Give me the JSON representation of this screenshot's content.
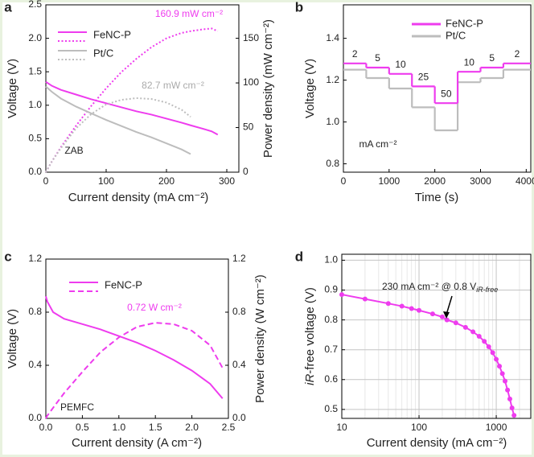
{
  "chart_data": [
    {
      "panel": "a",
      "type": "line",
      "xlabel": "Current density (mA cm⁻²)",
      "ylabel": "Voltage (V)",
      "y2label": "Power density (mW cm⁻²)",
      "x": [
        0,
        10,
        25,
        50,
        75,
        100,
        125,
        150,
        175,
        200,
        225,
        240,
        260,
        275,
        285
      ],
      "xlim": [
        0,
        320
      ],
      "xticks": [
        0,
        100,
        200,
        300
      ],
      "ylim": [
        0,
        2.5
      ],
      "yticks": [
        {
          "value": 0,
          "label": "0.0"
        },
        0.5,
        {
          "value": 1,
          "label": "1.0"
        },
        1.5,
        {
          "value": 2,
          "label": "2.0"
        },
        2.5
      ],
      "y2lim": [
        0,
        187.5
      ],
      "y2ticks": [
        0,
        50,
        100,
        150
      ],
      "power_style": "dotted",
      "series": [
        {
          "name": "FeNC-P",
          "color": "#ee3cee",
          "values": [
            1.35,
            1.29,
            1.23,
            1.16,
            1.09,
            1.03,
            0.97,
            0.91,
            0.86,
            0.8,
            0.74,
            0.7,
            0.65,
            0.61,
            0.56
          ],
          "power_values": [
            0,
            12,
            28,
            52,
            74,
            94,
            112,
            127,
            140,
            150,
            156,
            158,
            160,
            161,
            158
          ]
        },
        {
          "name": "Pt/C",
          "color": "#bdbdbd",
          "values": [
            1.28,
            1.2,
            1.1,
            0.98,
            0.88,
            0.78,
            0.69,
            0.6,
            0.52,
            0.43,
            0.34,
            0.27,
            null,
            null,
            null
          ],
          "power_values": [
            0,
            12,
            27,
            49,
            65,
            76,
            81,
            83,
            82,
            78,
            70,
            62,
            null,
            null,
            null
          ]
        }
      ],
      "annotations": [
        {
          "text": "160.9 mW cm⁻²",
          "color": "#ee3cee"
        },
        {
          "text": "82.7 mW cm⁻²",
          "color": "#aaaaaa"
        },
        {
          "text": "ZAB",
          "color": "#222222"
        }
      ]
    },
    {
      "panel": "b",
      "type": "step",
      "xlabel": "Time (s)",
      "ylabel": "Voltage (V)",
      "x": [
        0,
        500,
        1000,
        1500,
        2000,
        2500,
        3000,
        3500
      ],
      "xlim": [
        0,
        4100
      ],
      "xticks": [
        0,
        1000,
        2000,
        3000,
        4000
      ],
      "ylim": [
        0.76,
        1.56
      ],
      "yticks": [
        0.8,
        {
          "value": 1,
          "label": "1.0"
        },
        1.2,
        1.4
      ],
      "series": [
        {
          "name": "FeNC-P",
          "color": "#ee3cee",
          "values": [
            1.28,
            1.26,
            1.23,
            1.17,
            1.09,
            1.24,
            1.26,
            1.28
          ]
        },
        {
          "name": "Pt/C",
          "color": "#bdbdbd",
          "values": [
            1.25,
            1.21,
            1.16,
            1.07,
            0.96,
            1.19,
            1.21,
            1.25
          ]
        }
      ],
      "step_labels": [
        2,
        5,
        10,
        25,
        50,
        10,
        5,
        2
      ],
      "annotations": [
        {
          "text": "mA  cm⁻²",
          "color": "#222222"
        }
      ]
    },
    {
      "panel": "c",
      "type": "line",
      "xlabel": "Current density (A cm⁻²)",
      "ylabel": "Voltage (V)",
      "y2label": "Power density (W cm⁻²)",
      "x": [
        0,
        0.02,
        0.1,
        0.25,
        0.5,
        0.75,
        1,
        1.25,
        1.5,
        1.75,
        2,
        2.25,
        2.42
      ],
      "xlim": [
        0,
        2.5
      ],
      "xticks": [
        {
          "value": 0,
          "label": "0.0"
        },
        0.5,
        {
          "value": 1,
          "label": "1.0"
        },
        1.5,
        {
          "value": 2,
          "label": "2.0"
        },
        2.5
      ],
      "ylim": [
        0,
        1.2
      ],
      "yticks": [
        {
          "value": 0,
          "label": "0.0"
        },
        0.4,
        0.8,
        1.2
      ],
      "y2lim": [
        0,
        1.2
      ],
      "y2ticks": [
        {
          "value": 0,
          "label": "0.0"
        },
        0.4,
        0.8,
        1.2
      ],
      "power_style": "dashed",
      "series": [
        {
          "name": "FeNC-P",
          "color": "#ee3cee",
          "values": [
            0.92,
            0.88,
            0.8,
            0.75,
            0.71,
            0.67,
            0.62,
            0.57,
            0.51,
            0.44,
            0.36,
            0.26,
            0.15
          ],
          "power_values": [
            0,
            0.02,
            0.08,
            0.19,
            0.35,
            0.5,
            0.61,
            0.69,
            0.72,
            0.71,
            0.66,
            0.55,
            0.38
          ]
        }
      ],
      "annotations": [
        {
          "text": "0.72 W cm⁻²",
          "color": "#ee3cee"
        },
        {
          "text": "PEMFC",
          "color": "#222222"
        }
      ]
    },
    {
      "panel": "d",
      "type": "line",
      "xscale": "log",
      "grid": true,
      "minor_grid": true,
      "markers": true,
      "xlabel": "Current density (mA cm⁻²)",
      "ylabel_italic": "iR",
      "ylabel": "-free voltage (V)",
      "x": [
        10,
        20,
        40,
        60,
        80,
        100,
        150,
        200,
        230,
        300,
        400,
        500,
        600,
        700,
        800,
        900,
        1000,
        1100,
        1200,
        1300,
        1400,
        1500,
        1600,
        1700
      ],
      "xlim": [
        10,
        2800
      ],
      "xticks": [
        10,
        100,
        1000
      ],
      "ylim": [
        0.47,
        1.02
      ],
      "yticks": [
        0.5,
        0.6,
        0.7,
        0.8,
        0.9,
        {
          "value": 1,
          "label": "1.0"
        }
      ],
      "series": [
        {
          "name": "FeNC-P",
          "color": "#ee3cee",
          "values": [
            0.885,
            0.87,
            0.855,
            0.846,
            0.838,
            0.832,
            0.82,
            0.81,
            0.8,
            0.79,
            0.775,
            0.76,
            0.745,
            0.728,
            0.71,
            0.69,
            0.668,
            0.645,
            0.62,
            0.595,
            0.565,
            0.535,
            0.505,
            0.48
          ]
        }
      ],
      "annotations": [
        {
          "text": "230 mA cm⁻² @ 0.8 V",
          "sub": "iR-free",
          "color": "#222222"
        }
      ]
    }
  ]
}
